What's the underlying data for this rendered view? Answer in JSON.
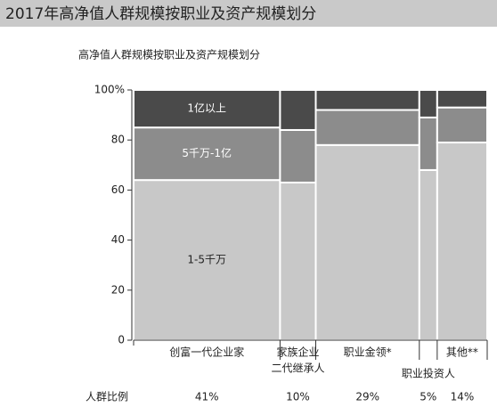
{
  "chart_data": {
    "type": "marimekko",
    "title": "2017年高净值人群规模按职业及资产规模划分",
    "subtitle": "高净值人群规模按职业及资产规模划分",
    "categories": [
      [
        "创富一代企业家"
      ],
      [
        "家族企业",
        "二代继承人"
      ],
      [
        "职业金领*"
      ],
      [
        "职业投资人"
      ],
      [
        "其他**"
      ]
    ],
    "widths": [
      41,
      10,
      29,
      5,
      14
    ],
    "width_labels": [
      "41%",
      "10%",
      "29%",
      "5%",
      "14%"
    ],
    "width_title": "人群比例",
    "series": [
      {
        "name": "1-5千万",
        "color": "#c8c8c8",
        "values": [
          64,
          63,
          78,
          68,
          79
        ]
      },
      {
        "name": "5千万-1亿",
        "color": "#8c8c8c",
        "values": [
          21,
          21,
          14,
          21,
          14
        ]
      },
      {
        "name": "1亿以上",
        "color": "#4a4a4a",
        "values": [
          15,
          16,
          8,
          11,
          7
        ]
      }
    ],
    "ylim": [
      0,
      100
    ],
    "yticks": [
      0,
      20,
      40,
      60,
      80,
      {
        "value": 100,
        "label": "100%"
      }
    ]
  }
}
